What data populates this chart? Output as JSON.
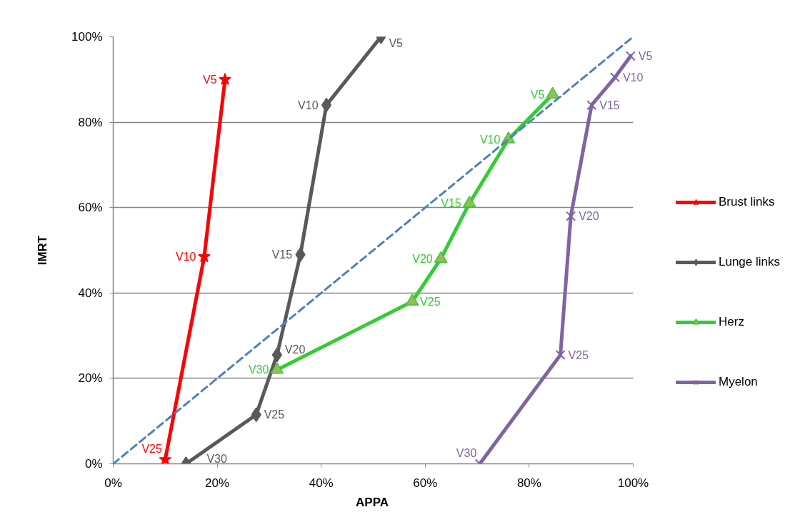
{
  "chart_data": {
    "type": "line",
    "xlabel": "APPA",
    "ylabel": "IMRT",
    "xlim": [
      0,
      100
    ],
    "ylim": [
      0,
      100
    ],
    "xticks": [
      {
        "value": 0,
        "label": "0%"
      },
      {
        "value": 20,
        "label": "20%"
      },
      {
        "value": 40,
        "label": "40%"
      },
      {
        "value": 60,
        "label": "60%"
      },
      {
        "value": 80,
        "label": "80%"
      },
      {
        "value": 100,
        "label": "100%"
      }
    ],
    "yticks": [
      {
        "value": 0,
        "label": "0%"
      },
      {
        "value": 20,
        "label": "20%"
      },
      {
        "value": 40,
        "label": "40%"
      },
      {
        "value": 60,
        "label": "60%"
      },
      {
        "value": 80,
        "label": "80%"
      },
      {
        "value": 100,
        "label": "100%"
      }
    ],
    "grid": "y",
    "legend": "right",
    "line_style": "solid",
    "series": [
      {
        "name": "Brust links",
        "color": "#ff0000",
        "marker": "star",
        "x": [
          21.5,
          17.5,
          10
        ],
        "values": [
          90,
          48.5,
          1
        ],
        "value_labels": [
          "V5",
          "V10",
          "V25"
        ]
      },
      {
        "name": "Lunge links",
        "color": "#595959",
        "marker": "diamond",
        "x": [
          51.5,
          41,
          36,
          31.5,
          27.5,
          14
        ],
        "values": [
          100,
          84,
          49,
          25.5,
          11.5,
          0
        ],
        "value_labels": [
          "V5",
          "V10",
          "V15",
          "V20",
          "V25",
          "V30"
        ]
      },
      {
        "name": "Herz",
        "color": "#33cc33",
        "colors": [
          "#9bbb59",
          "#9bbb59",
          "#9bbb59",
          "#9bbb59",
          "#9bbb59",
          "#9bbb59"
        ],
        "marker": "triangle",
        "x": [
          84.5,
          76,
          68.5,
          63,
          57.5,
          31.5
        ],
        "values": [
          86.5,
          76,
          61,
          48,
          38,
          22
        ],
        "value_labels": [
          "V5",
          "V10",
          "V15",
          "V20",
          "V25",
          "V30"
        ]
      },
      {
        "name": "Myelon",
        "color": "#8064a2",
        "marker": "cross",
        "x": [
          99.5,
          96.5,
          92,
          88,
          86,
          70.5
        ],
        "values": [
          95.5,
          90.5,
          84,
          58,
          25.5,
          0
        ],
        "value_labels": [
          "V5",
          "V10",
          "V15",
          "V20",
          "V25",
          "V30"
        ]
      },
      {
        "color": "#4f81bd",
        "marker": "none",
        "line_style": "dashed",
        "x": [
          0,
          100
        ],
        "values": [
          0,
          100
        ]
      }
    ]
  }
}
